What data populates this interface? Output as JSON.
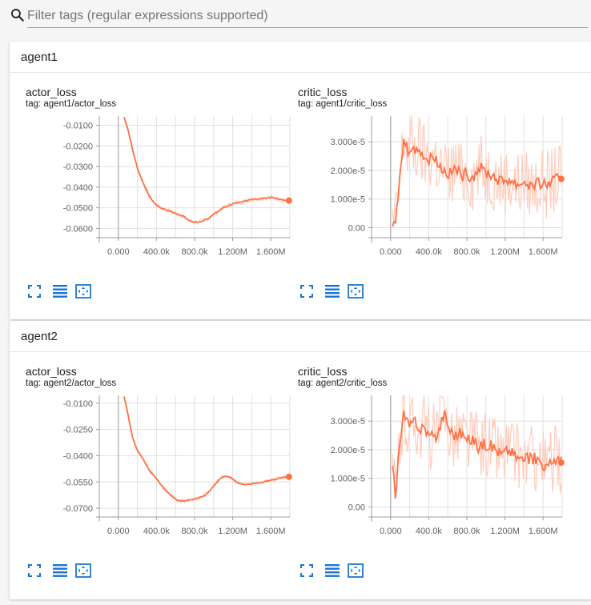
{
  "filter": {
    "placeholder": "Filter tags (regular expressions supported)",
    "value": ""
  },
  "colors": {
    "line": "#ff7043",
    "line_faded": "#ffccbc",
    "grid": "#e0e0e0",
    "axis": "#9e9e9e",
    "icon": "#1976d2"
  },
  "toolbar_icons": [
    "fullscreen-icon",
    "toggle-log-scale-icon",
    "fit-domain-icon"
  ],
  "categories": [
    {
      "name": "agent1",
      "charts": [
        {
          "title": "actor_loss",
          "tag": "tag: agent1/actor_loss",
          "chart_data": {
            "type": "line",
            "x_ticks": [
              0,
              400000,
              800000,
              1200000,
              1600000
            ],
            "x_tick_labels": [
              "0.000",
              "400.0k",
              "800.0k",
              "1.200M",
              "1.600M"
            ],
            "y_ticks": [
              -0.06,
              -0.05,
              -0.04,
              -0.03,
              -0.02,
              -0.01
            ],
            "y_tick_labels": [
              "-0.0600",
              "-0.0500",
              "-0.0400",
              "-0.0300",
              "-0.0200",
              "-0.0100"
            ],
            "xlim": [
              -200000,
              1800000
            ],
            "ylim": [
              -0.0645,
              -0.0055
            ],
            "series": [
              {
                "x": [
                  60000,
                  100000,
                  150000,
                  200000,
                  260000,
                  320000,
                  380000,
                  440000,
                  500000,
                  560000,
                  620000,
                  680000,
                  720000,
                  760000,
                  800000,
                  840000,
                  880000,
                  950000,
                  1000000,
                  1100000,
                  1200000,
                  1300000,
                  1400000,
                  1500000,
                  1600000,
                  1660000,
                  1720000,
                  1790000
                ],
                "y": [
                  -0.006,
                  -0.012,
                  -0.022,
                  -0.031,
                  -0.038,
                  -0.044,
                  -0.048,
                  -0.05,
                  -0.051,
                  -0.052,
                  -0.053,
                  -0.054,
                  -0.0555,
                  -0.0565,
                  -0.057,
                  -0.057,
                  -0.0565,
                  -0.055,
                  -0.053,
                  -0.05,
                  -0.048,
                  -0.047,
                  -0.046,
                  -0.0455,
                  -0.045,
                  -0.0455,
                  -0.0462,
                  -0.0465
                ],
                "band": 0.0012
              }
            ]
          }
        },
        {
          "title": "critic_loss",
          "tag": "tag: agent1/critic_loss",
          "chart_data": {
            "type": "line",
            "x_ticks": [
              0,
              400000,
              800000,
              1200000,
              1600000
            ],
            "x_tick_labels": [
              "0.000",
              "400.0k",
              "800.0k",
              "1.200M",
              "1.600M"
            ],
            "y_ticks": [
              0,
              1e-05,
              2e-05,
              3e-05
            ],
            "y_tick_labels": [
              "0.00",
              "1.000e-5",
              "2.000e-5",
              "3.000e-5"
            ],
            "xlim": [
              -200000,
              1800000
            ],
            "ylim": [
              -3.5e-06,
              3.9e-05
            ],
            "series": [
              {
                "x": [
                  20000,
                  50000,
                  80000,
                  110000,
                  140000,
                  180000,
                  220000,
                  260000,
                  300000,
                  350000,
                  400000,
                  450000,
                  500000,
                  560000,
                  620000,
                  680000,
                  740000,
                  800000,
                  860000,
                  920000,
                  1000000,
                  1080000,
                  1160000,
                  1240000,
                  1320000,
                  1400000,
                  1480000,
                  1560000,
                  1640000,
                  1720000,
                  1790000
                ],
                "y": [
                  1e-06,
                  5e-07,
                  1.2e-05,
                  2.2e-05,
                  3.1e-05,
                  2.7e-05,
                  2.9e-05,
                  2.6e-05,
                  2.8e-05,
                  2.5e-05,
                  2.3e-05,
                  2.6e-05,
                  2.2e-05,
                  2e-05,
                  1.85e-05,
                  2.1e-05,
                  1.8e-05,
                  1.9e-05,
                  1.75e-05,
                  2.1e-05,
                  1.95e-05,
                  1.8e-05,
                  1.6e-05,
                  1.7e-05,
                  1.5e-05,
                  1.6e-05,
                  1.45e-05,
                  1.55e-05,
                  1.5e-05,
                  1.65e-05,
                  1.7e-05
                ],
                "band": 1.2e-05
              }
            ]
          }
        }
      ]
    },
    {
      "name": "agent2",
      "charts": [
        {
          "title": "actor_loss",
          "tag": "tag: agent2/actor_loss",
          "chart_data": {
            "type": "line",
            "x_ticks": [
              0,
              400000,
              800000,
              1200000,
              1600000
            ],
            "x_tick_labels": [
              "0.000",
              "400.0k",
              "800.0k",
              "1.200M",
              "1.600M"
            ],
            "y_ticks": [
              -0.07,
              -0.055,
              -0.04,
              -0.025,
              -0.01
            ],
            "y_tick_labels": [
              "-0.0700",
              "-0.0550",
              "-0.0400",
              "-0.0250",
              "-0.0100"
            ],
            "xlim": [
              -200000,
              1800000
            ],
            "ylim": [
              -0.075,
              -0.0055
            ],
            "series": [
              {
                "x": [
                  60000,
                  100000,
                  150000,
                  200000,
                  260000,
                  320000,
                  380000,
                  440000,
                  500000,
                  560000,
                  620000,
                  680000,
                  720000,
                  760000,
                  820000,
                  900000,
                  960000,
                  1020000,
                  1080000,
                  1120000,
                  1180000,
                  1250000,
                  1320000,
                  1400000,
                  1480000,
                  1560000,
                  1640000,
                  1720000,
                  1790000
                ],
                "y": [
                  -0.006,
                  -0.016,
                  -0.03,
                  -0.037,
                  -0.042,
                  -0.048,
                  -0.052,
                  -0.056,
                  -0.06,
                  -0.063,
                  -0.0655,
                  -0.066,
                  -0.0655,
                  -0.0652,
                  -0.0645,
                  -0.063,
                  -0.06,
                  -0.056,
                  -0.0525,
                  -0.0515,
                  -0.0525,
                  -0.0555,
                  -0.0565,
                  -0.056,
                  -0.0555,
                  -0.0545,
                  -0.0535,
                  -0.0525,
                  -0.052
                ],
                "band": 0.0012
              }
            ]
          }
        },
        {
          "title": "critic_loss",
          "tag": "tag: agent2/critic_loss",
          "chart_data": {
            "type": "line",
            "x_ticks": [
              0,
              400000,
              800000,
              1200000,
              1600000
            ],
            "x_tick_labels": [
              "0.000",
              "400.0k",
              "800.0k",
              "1.200M",
              "1.600M"
            ],
            "y_ticks": [
              0,
              1e-05,
              2e-05,
              3e-05
            ],
            "y_tick_labels": [
              "0.00",
              "1.000e-5",
              "2.000e-5",
              "3.000e-5"
            ],
            "xlim": [
              -200000,
              1800000
            ],
            "ylim": [
              -3.5e-06,
              3.9e-05
            ],
            "series": [
              {
                "x": [
                  20000,
                  50000,
                  80000,
                  110000,
                  140000,
                  180000,
                  220000,
                  260000,
                  300000,
                  350000,
                  400000,
                  450000,
                  500000,
                  560000,
                  620000,
                  680000,
                  740000,
                  800000,
                  860000,
                  920000,
                  1000000,
                  1080000,
                  1160000,
                  1240000,
                  1320000,
                  1400000,
                  1480000,
                  1560000,
                  1640000,
                  1720000,
                  1790000
                ],
                "y": [
                  1.6e-05,
                  2.5e-06,
                  1.7e-05,
                  2.5e-05,
                  3.2e-05,
                  2.9e-05,
                  2.8e-05,
                  3.1e-05,
                  2.7e-05,
                  2.8e-05,
                  2.5e-05,
                  2.4e-05,
                  2.6e-05,
                  3.3e-05,
                  2.7e-05,
                  2.5e-05,
                  2.6e-05,
                  2.3e-05,
                  2.4e-05,
                  2.1e-05,
                  2.2e-05,
                  2.1e-05,
                  1.85e-05,
                  2e-05,
                  1.75e-05,
                  1.65e-05,
                  1.7e-05,
                  1.65e-05,
                  1.35e-05,
                  1.7e-05,
                  1.55e-05
                ],
                "band": 1.2e-05
              }
            ]
          }
        }
      ]
    }
  ]
}
